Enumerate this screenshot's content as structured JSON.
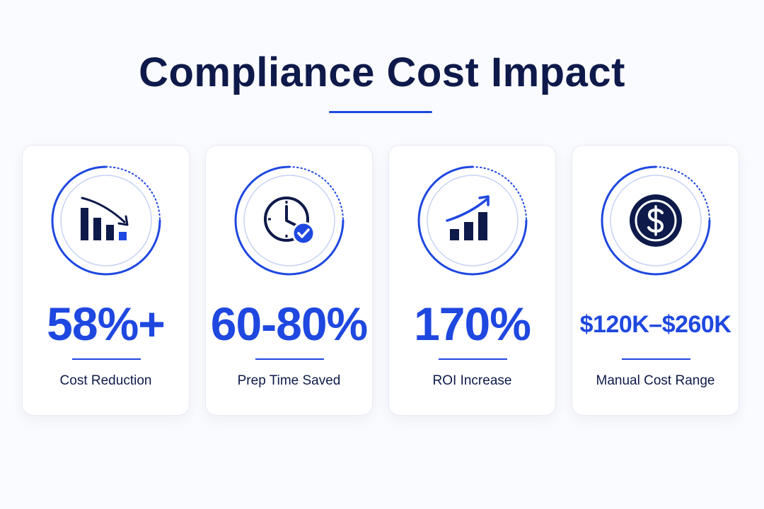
{
  "title": "Compliance Cost Impact",
  "colors": {
    "accent": "#1f48e0",
    "navy": "#0e1a4a",
    "ring_light": "#c7d3f5"
  },
  "cards": [
    {
      "value": "58%+",
      "label": "Cost Reduction",
      "icon": "bar-chart-down-icon"
    },
    {
      "value": "60-80%",
      "label": "Prep Time Saved",
      "icon": "clock-check-icon"
    },
    {
      "value": "170%",
      "label": "ROI Increase",
      "icon": "bar-chart-up-icon"
    },
    {
      "value": "$120K–$260K",
      "label": "Manual Cost Range",
      "icon": "dollar-coin-icon"
    }
  ]
}
